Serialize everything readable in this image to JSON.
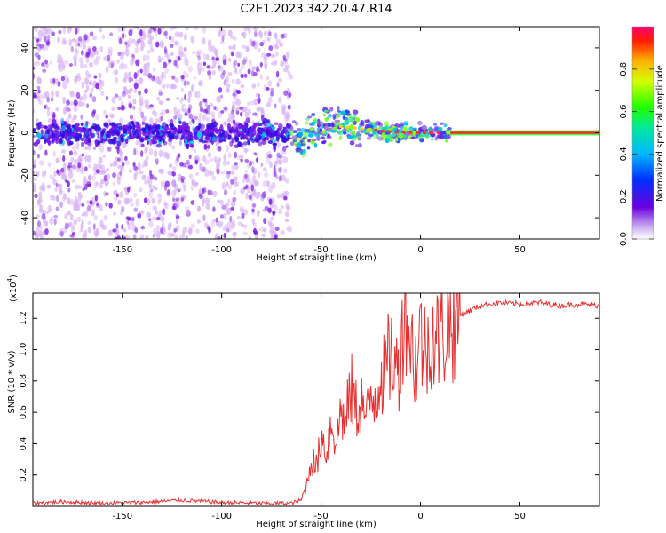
{
  "title": "C2E1.2023.342.20.47.R14",
  "colors": {
    "snr_line": "#e83030",
    "ridge": "#ff2020",
    "scatter": "#7a18e8",
    "scatter_light": "#d9b4f5"
  },
  "colorbar": {
    "label": "Normalized spectral amplitude",
    "ticks": [
      "0.0",
      "0.2",
      "0.4",
      "0.6",
      "0.8"
    ],
    "tick_values": [
      0.0,
      0.2,
      0.4,
      0.6,
      0.8
    ],
    "range": [
      0,
      1
    ]
  },
  "chart_data": [
    {
      "type": "heatmap",
      "name": "spectrogram",
      "xlabel": "Height of straight line (km)",
      "ylabel": "Frequency (Hz)",
      "xlim": [
        -195,
        90
      ],
      "ylim": [
        -50,
        50
      ],
      "x_ticks": [
        -150,
        -100,
        -50,
        0,
        50
      ],
      "x_tick_labels": [
        "-150",
        "-100",
        "-50",
        "0",
        "50"
      ],
      "y_ticks": [
        -40,
        -20,
        0,
        20,
        40
      ],
      "y_tick_labels": [
        "-40",
        "-20",
        "0",
        "20",
        "40"
      ],
      "noise_region_xlim": [
        -195,
        -65
      ],
      "ridge": {
        "x": [
          -62,
          -55,
          -50,
          -45,
          -40,
          -35,
          -30,
          -25,
          -20,
          -15,
          -10,
          -5,
          0,
          5,
          10,
          15,
          90
        ],
        "y": [
          -6,
          0,
          1.5,
          3,
          3,
          2.5,
          2,
          1.5,
          1,
          0.5,
          0.3,
          0.2,
          0,
          0,
          0,
          0,
          0
        ]
      }
    },
    {
      "type": "line",
      "name": "snr",
      "xlabel": "Height of straight line (km)",
      "ylabel": "SNR (10 * v/v)",
      "y_multiplier_label": "(x10",
      "y_multiplier_exp": "4",
      "xlim": [
        -195,
        90
      ],
      "ylim": [
        0,
        13600
      ],
      "x_ticks": [
        -150,
        -100,
        -50,
        0,
        50
      ],
      "x_tick_labels": [
        "-150",
        "-100",
        "-50",
        "0",
        "50"
      ],
      "y_ticks": [
        2000,
        4000,
        6000,
        8000,
        10000,
        12000
      ],
      "y_tick_labels": [
        "0.2",
        "0.4",
        "0.6",
        "0.8",
        "1.0",
        "1.2"
      ],
      "series": [
        {
          "x": [
            -195,
            -180,
            -160,
            -140,
            -120,
            -100,
            -80,
            -65,
            -60,
            -57,
            -55,
            -52,
            -50,
            -47,
            -45,
            -42,
            -40,
            -38,
            -35,
            -32,
            -30,
            -27,
            -25,
            -22,
            -20,
            -18,
            -15,
            -12,
            -10,
            -8,
            -5,
            -2,
            0,
            3,
            5,
            8,
            10,
            12,
            15,
            18,
            20,
            25,
            30,
            35,
            40,
            50,
            60,
            70,
            80,
            90
          ],
          "y": [
            200,
            300,
            200,
            250,
            400,
            250,
            200,
            200,
            400,
            1500,
            3000,
            2500,
            4500,
            3500,
            5500,
            4000,
            6500,
            5000,
            7500,
            6000,
            6800,
            5500,
            7000,
            7200,
            9000,
            8000,
            10000,
            8500,
            9500,
            13600,
            10500,
            9000,
            11000,
            9500,
            11500,
            10500,
            11000,
            11200,
            11800,
            12000,
            12200,
            12500,
            12800,
            12900,
            13000,
            12900,
            13000,
            12800,
            12900,
            12800
          ]
        }
      ]
    }
  ]
}
